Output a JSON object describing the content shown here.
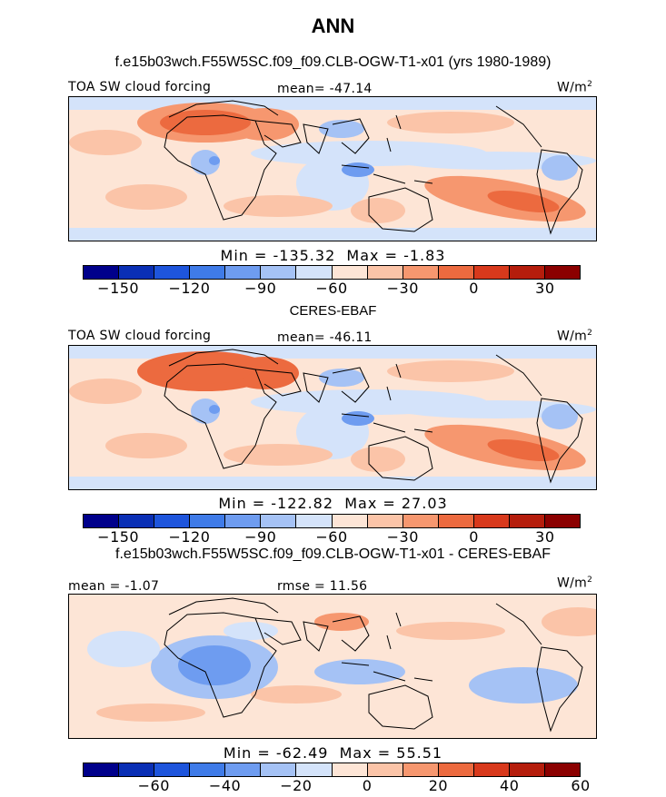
{
  "page": {
    "title": "ANN",
    "panel1_title": "f.e15b03wch.F55W5SC.f09_f09.CLB-OGW-T1-x01 (yrs 1980-1989)",
    "panel2_title": "CERES-EBAF",
    "panel3_title": "f.e15b03wch.F55W5SC.f09_f09.CLB-OGW-T1-x01 - CERES-EBAF"
  },
  "colors": {
    "abs_scale": [
      "#00008b",
      "#0a2fb5",
      "#1e55dc",
      "#3f7be8",
      "#6e9cf0",
      "#a5c2f5",
      "#d4e3fa",
      "#fde5d6",
      "#fbc4a8",
      "#f6976f",
      "#ec6a3f",
      "#d8391c",
      "#b51d0c",
      "#8b0000"
    ],
    "diff_scale": [
      "#00008b",
      "#0a2fb5",
      "#1e55dc",
      "#3f7be8",
      "#6e9cf0",
      "#a5c2f5",
      "#d4e3fa",
      "#fde5d6",
      "#fbc4a8",
      "#f6976f",
      "#ec6a3f",
      "#d8391c",
      "#b51d0c",
      "#8b0000"
    ],
    "land_outline": "#000000",
    "background": "#ffffff"
  },
  "chart_data": [
    {
      "type": "heatmap",
      "title": "f.e15b03wch.F55W5SC.f09_f09.CLB-OGW-T1-x01 (yrs 1980-1989)",
      "left_label": "TOA SW cloud forcing",
      "center_label": "mean= -47.14",
      "units_label": "W/m",
      "units_sup": "2",
      "min_label": "Min = -135.32",
      "max_label": "Max = -1.83",
      "summary": {
        "mean": -47.14,
        "min": -135.32,
        "max": -1.83
      },
      "colorbar_levels": [
        -150,
        -135,
        -120,
        -105,
        -90,
        -75,
        -60,
        -45,
        -30,
        -15,
        0,
        15,
        30
      ],
      "tick_labels": [
        "-150",
        "-120",
        "-90",
        "-60",
        "-30",
        "0",
        "30"
      ],
      "tick_values": [
        -150,
        -120,
        -90,
        -60,
        -30,
        0,
        30
      ]
    },
    {
      "type": "heatmap",
      "title": "CERES-EBAF",
      "left_label": "TOA SW cloud forcing",
      "center_label": "mean= -46.11",
      "units_label": "W/m",
      "units_sup": "2",
      "min_label": "Min = -122.82",
      "max_label": "Max = 27.03",
      "summary": {
        "mean": -46.11,
        "min": -122.82,
        "max": 27.03
      },
      "colorbar_levels": [
        -150,
        -135,
        -120,
        -105,
        -90,
        -75,
        -60,
        -45,
        -30,
        -15,
        0,
        15,
        30
      ],
      "tick_labels": [
        "-150",
        "-120",
        "-90",
        "-60",
        "-30",
        "0",
        "30"
      ],
      "tick_values": [
        -150,
        -120,
        -90,
        -60,
        -30,
        0,
        30
      ]
    },
    {
      "type": "heatmap",
      "title": "f.e15b03wch.F55W5SC.f09_f09.CLB-OGW-T1-x01 - CERES-EBAF",
      "left_label": "mean = -1.07",
      "center_label": "rmse = 11.56",
      "units_label": "W/m",
      "units_sup": "2",
      "min_label": "Min = -62.49",
      "max_label": "Max = 55.51",
      "summary": {
        "mean": -1.07,
        "rmse": 11.56,
        "min": -62.49,
        "max": 55.51
      },
      "colorbar_levels": [
        -70,
        -60,
        -50,
        -40,
        -30,
        -20,
        -10,
        0,
        10,
        20,
        30,
        40,
        50,
        60,
        70
      ],
      "tick_labels": [
        "-60",
        "-40",
        "-20",
        "0",
        "20",
        "40",
        "60"
      ],
      "tick_values": [
        -60,
        -40,
        -20,
        0,
        20,
        40,
        60
      ]
    }
  ]
}
